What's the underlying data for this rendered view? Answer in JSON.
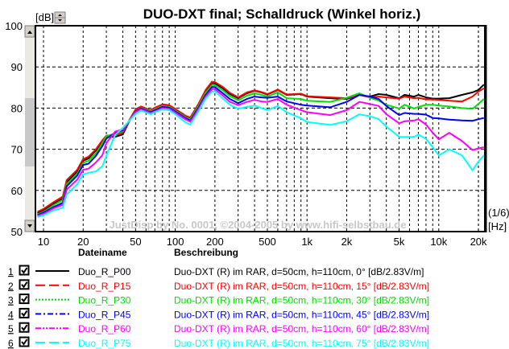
{
  "chart_data": {
    "type": "line",
    "title": "DUO-DXT final; Schalldruck (Winkel horiz.)",
    "ylabel": "[dB]",
    "xlabel": "[Hz]",
    "smoothing_label": "(1/6)",
    "watermark": "JustDisp by No. 0001, ©2004-2005 by www.hifi-selbstbau.de",
    "x_scale": "log",
    "xlim": [
      8.8,
      22500
    ],
    "ylim": [
      50,
      100
    ],
    "grid": true,
    "y_ticks": [
      "100",
      "90",
      "80",
      "70",
      "60",
      "50"
    ],
    "x_ticks": [
      {
        "v": 10,
        "label": "10"
      },
      {
        "v": 20,
        "label": "20"
      },
      {
        "v": 50,
        "label": "50"
      },
      {
        "v": 100,
        "label": "100"
      },
      {
        "v": 200,
        "label": "200"
      },
      {
        "v": 500,
        "label": "500"
      },
      {
        "v": 1000,
        "label": "1k"
      },
      {
        "v": 2000,
        "label": "2k"
      },
      {
        "v": 5000,
        "label": "5k"
      },
      {
        "v": 10000,
        "label": "10k"
      },
      {
        "v": 20000,
        "label": "20k"
      }
    ],
    "x": [
      9,
      10,
      12,
      14,
      15,
      18,
      20,
      22,
      25,
      28,
      30,
      35,
      40,
      45,
      50,
      55,
      65,
      70,
      80,
      90,
      100,
      120,
      130,
      150,
      170,
      190,
      200,
      230,
      260,
      300,
      350,
      400,
      450,
      500,
      600,
      700,
      900,
      1000,
      1500,
      2000,
      2500,
      3000,
      3500,
      4000,
      5000,
      5500,
      6500,
      7000,
      8000,
      9000,
      10000,
      12000,
      15000,
      18000,
      20000,
      22000
    ],
    "series": [
      {
        "name": "Duo_R_P00",
        "color": "#000000",
        "dash": "solid",
        "values": [
          54.5,
          55.1,
          56.8,
          58,
          62,
          64.6,
          67.2,
          67.8,
          69.7,
          71.9,
          73,
          73,
          73.6,
          77,
          79.5,
          80.2,
          79.3,
          79.9,
          80.7,
          80.5,
          79.6,
          77.9,
          77.5,
          80.8,
          84.1,
          86.1,
          86,
          84.8,
          83.4,
          82.4,
          83.6,
          84.2,
          83.8,
          83.3,
          84.4,
          83.2,
          83.4,
          82.8,
          82.4,
          82.2,
          83.2,
          82.8,
          83.4,
          83.2,
          82.4,
          83.2,
          82.8,
          83.2,
          82.6,
          82.3,
          82.3,
          82.4,
          83.2,
          83.8,
          84.4,
          85.7
        ]
      },
      {
        "name": "Duo_R_P15",
        "color": "#ff0000",
        "dash": "long-dash",
        "values": [
          54.8,
          55.5,
          57.2,
          58.5,
          62.5,
          65,
          67.6,
          68.2,
          70,
          72.2,
          73.3,
          73.5,
          74,
          77.2,
          79.7,
          80.4,
          79.5,
          80.1,
          80.9,
          80.7,
          79.8,
          78.1,
          77.7,
          81,
          84.4,
          86.4,
          86.3,
          85.1,
          83.7,
          82.6,
          83.8,
          84.3,
          83.9,
          83.4,
          84.5,
          83.3,
          83.5,
          82.9,
          82.6,
          82.4,
          83.2,
          82.6,
          82.8,
          82.6,
          82.3,
          82.8,
          82.4,
          82.5,
          82.1,
          82.1,
          82,
          81.8,
          81.6,
          82.8,
          84,
          84.8
        ]
      },
      {
        "name": "Duo_R_P30",
        "color": "#00e000",
        "dash": "dotted",
        "values": [
          54.2,
          54.8,
          56.5,
          57.7,
          61.5,
          64,
          66.7,
          67.2,
          69,
          71.5,
          73.2,
          73.8,
          74.4,
          77,
          79.3,
          80,
          79.2,
          79.7,
          80.5,
          80.3,
          79.4,
          77.7,
          77.3,
          80.5,
          83.7,
          85.6,
          85.6,
          84.3,
          82.9,
          81.9,
          83,
          83.6,
          83.2,
          82.8,
          83.8,
          82.4,
          82.2,
          81.8,
          81.5,
          82.5,
          83.6,
          82.5,
          81.8,
          80.8,
          79.9,
          80.8,
          79.9,
          80.3,
          80.8,
          80.8,
          80.6,
          80.4,
          80,
          79.8,
          81,
          82.2
        ]
      },
      {
        "name": "Duo_R_P45",
        "color": "#0000ff",
        "dash": "dash-dot",
        "values": [
          54,
          54.6,
          56,
          57,
          61,
          63.6,
          66.2,
          66.5,
          68.4,
          70.8,
          72.6,
          74,
          74.6,
          77,
          79.2,
          79.9,
          79,
          79.5,
          80.3,
          80.1,
          79.2,
          77.5,
          77,
          80.1,
          83.2,
          85.1,
          85.1,
          83.6,
          82.2,
          81.2,
          82.2,
          82.8,
          82.6,
          82.5,
          82.8,
          81.6,
          80.8,
          80.6,
          80.2,
          81.5,
          83.2,
          82.8,
          82.2,
          80.5,
          78.3,
          78.8,
          78.6,
          78.6,
          78.4,
          77.6,
          77.5,
          77.2,
          77,
          76.9,
          77.3,
          77.6
        ]
      },
      {
        "name": "Duo_R_P60",
        "color": "#ff00ff",
        "dash": "dash-dot-dot",
        "values": [
          53.8,
          54.3,
          55.7,
          56.5,
          60.2,
          62.6,
          65,
          65.3,
          66.8,
          68.6,
          71.5,
          74.3,
          74.8,
          77,
          79,
          79.7,
          78.8,
          79.2,
          80,
          79.8,
          78.9,
          77.2,
          76.7,
          79.7,
          82.8,
          84.6,
          84.6,
          83,
          81.5,
          80.7,
          81.5,
          82,
          81.6,
          81.5,
          82.2,
          80.8,
          79.5,
          79,
          78.3,
          79.5,
          81.5,
          81,
          80.5,
          78.5,
          76.3,
          76.8,
          77,
          77.3,
          76,
          74,
          72.4,
          74,
          72,
          69.8,
          70.2,
          70.5
        ]
      },
      {
        "name": "Duo_R_P75",
        "color": "#00ffff",
        "dash": "long-dash",
        "values": [
          53.5,
          54,
          55.2,
          55.8,
          59,
          61.5,
          63.9,
          64.3,
          64.6,
          65.9,
          68.5,
          73.5,
          75.2,
          77,
          78.6,
          79.4,
          78.5,
          79,
          79.7,
          79.5,
          78.5,
          76.5,
          76,
          79.2,
          82.3,
          84,
          84.1,
          82.3,
          80.8,
          79.8,
          80.3,
          80.6,
          80,
          79.5,
          80.5,
          79,
          77.5,
          76.6,
          75.9,
          76.8,
          78.5,
          78,
          77.3,
          75.5,
          73,
          73,
          73,
          73.6,
          72.5,
          70.5,
          68.5,
          70,
          68.5,
          64.9,
          67,
          68.5
        ]
      }
    ]
  },
  "legend": {
    "header_name": "Dateiname",
    "header_desc": "Beschreibung",
    "rows": [
      {
        "num": "1",
        "checked": true,
        "name": "Duo_R_P00",
        "desc": "Duo-DXT (R) im RAR, d=50cm, h=110cm, 0° [dB/2.83V/m]",
        "color": "#000000"
      },
      {
        "num": "2",
        "checked": true,
        "name": "Duo_R_P15",
        "desc": "Duo-DXT (R) im RAR, d=50cm, h=110cm, 15° [dB/2.83V/m]",
        "color": "#ff0000"
      },
      {
        "num": "3",
        "checked": true,
        "name": "Duo_R_P30",
        "desc": "Duo-DXT (R) im RAR, d=50cm, h=110cm, 30° [dB/2.83V/m]",
        "color": "#00e000"
      },
      {
        "num": "4",
        "checked": true,
        "name": "Duo_R_P45",
        "desc": "Duo-DXT (R) im RAR, d=50cm, h=110cm, 45° [dB/2.83V/m]",
        "color": "#0000ff"
      },
      {
        "num": "5",
        "checked": true,
        "name": "Duo_R_P60",
        "desc": "Duo-DXT (R) im RAR, d=50cm, h=110cm, 60° [dB/2.83V/m]",
        "color": "#ff00ff"
      },
      {
        "num": "6",
        "checked": true,
        "name": "Duo_R_P75",
        "desc": "Duo-DXT (R) im RAR, d=50cm, h=110cm, 75° [dB/2.83V/m]",
        "color": "#00ffff"
      }
    ]
  }
}
